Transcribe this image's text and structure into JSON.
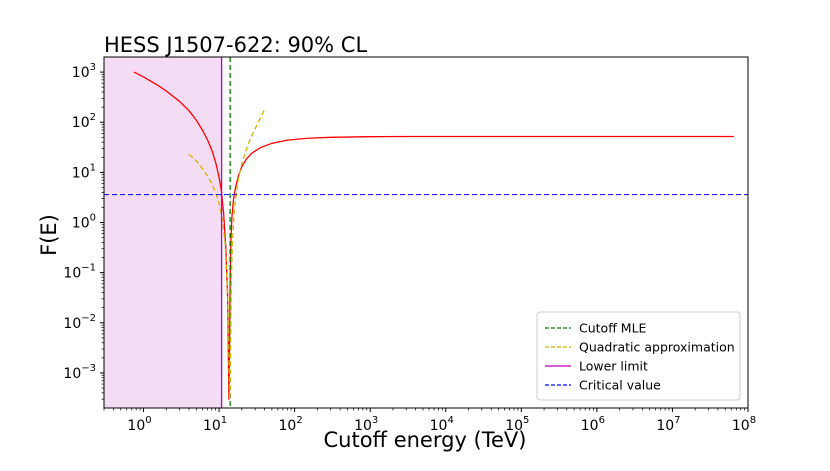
{
  "chart_data": {
    "type": "line",
    "title": "HESS J1507-622: 90% CL",
    "xlabel": "Cutoff energy (TeV)",
    "ylabel": "F(E)",
    "x_scale": "log",
    "y_scale": "log",
    "xlim": [
      0.3,
      100000000
    ],
    "ylim": [
      0.0002,
      2000
    ],
    "x_ticks": [
      {
        "value": 1,
        "base": "10",
        "exp": "0"
      },
      {
        "value": 10,
        "base": "10",
        "exp": "1"
      },
      {
        "value": 100,
        "base": "10",
        "exp": "2"
      },
      {
        "value": 1000,
        "base": "10",
        "exp": "3"
      },
      {
        "value": 10000,
        "base": "10",
        "exp": "4"
      },
      {
        "value": 100000,
        "base": "10",
        "exp": "5"
      },
      {
        "value": 1000000,
        "base": "10",
        "exp": "6"
      },
      {
        "value": 10000000,
        "base": "10",
        "exp": "7"
      },
      {
        "value": 100000000,
        "base": "10",
        "exp": "8"
      }
    ],
    "y_ticks": [
      {
        "value": 0.001,
        "base": "10",
        "exp": "−3"
      },
      {
        "value": 0.01,
        "base": "10",
        "exp": "−2"
      },
      {
        "value": 0.1,
        "base": "10",
        "exp": "−1"
      },
      {
        "value": 1,
        "base": "10",
        "exp": "0"
      },
      {
        "value": 10,
        "base": "10",
        "exp": "1"
      },
      {
        "value": 100,
        "base": "10",
        "exp": "2"
      },
      {
        "value": 1000,
        "base": "10",
        "exp": "3"
      }
    ],
    "series": [
      {
        "name": "",
        "color": "#ff0000",
        "style": "solid",
        "x": [
          0.75,
          1.0,
          1.5,
          2,
          3,
          4,
          5,
          6,
          7,
          8,
          9,
          10,
          10.8,
          11.5,
          12.3,
          13.0,
          13.5,
          13.8,
          14.0,
          14.3,
          14.8,
          15.5,
          16.5,
          18,
          20,
          23,
          27,
          35,
          50,
          80,
          150,
          300,
          1000,
          3000,
          10000,
          100000,
          1000000,
          10000000,
          65000000
        ],
        "y": [
          1000,
          800,
          560,
          420,
          260,
          170,
          110,
          70,
          45,
          28,
          16,
          8,
          4,
          1.5,
          0.3,
          0.03,
          0.0003,
          0.005,
          0.05,
          0.4,
          1.3,
          2.8,
          5,
          8.5,
          13,
          18.5,
          24,
          31,
          38,
          44,
          48,
          50,
          51.5,
          52,
          52,
          52,
          52,
          52,
          52
        ]
      },
      {
        "name": "Cutoff MLE",
        "color": "#008000",
        "style": "dashed",
        "vertical_x": 14.0
      },
      {
        "name": "Quadratic approximation",
        "color": "#d4b000",
        "style": "dashed",
        "x": [
          4.0,
          5,
          6,
          7,
          8,
          9,
          10,
          11,
          12,
          13,
          13.5,
          13.8,
          14.0,
          14.2,
          14.5,
          15,
          16,
          18,
          20,
          24,
          28,
          33,
          40
        ],
        "y": [
          23,
          17,
          12,
          8.5,
          6,
          4,
          2.4,
          1.2,
          0.4,
          0.04,
          0.002,
          0.0003,
          0.0005,
          0.003,
          0.06,
          0.4,
          2,
          7.5,
          15,
          35,
          60,
          100,
          180
        ]
      },
      {
        "name": "Lower limit",
        "color": "#bf00bf",
        "style": "solid",
        "vertical_x": 10.8,
        "shaded_region_x": [
          0.3,
          10.8
        ],
        "shade_color": "#f5dcf5"
      },
      {
        "name": "Critical value",
        "color": "#0000ff",
        "style": "dashed",
        "horizontal_y": 3.6
      }
    ],
    "legend": {
      "placement": "lower-right"
    },
    "grid": false
  }
}
